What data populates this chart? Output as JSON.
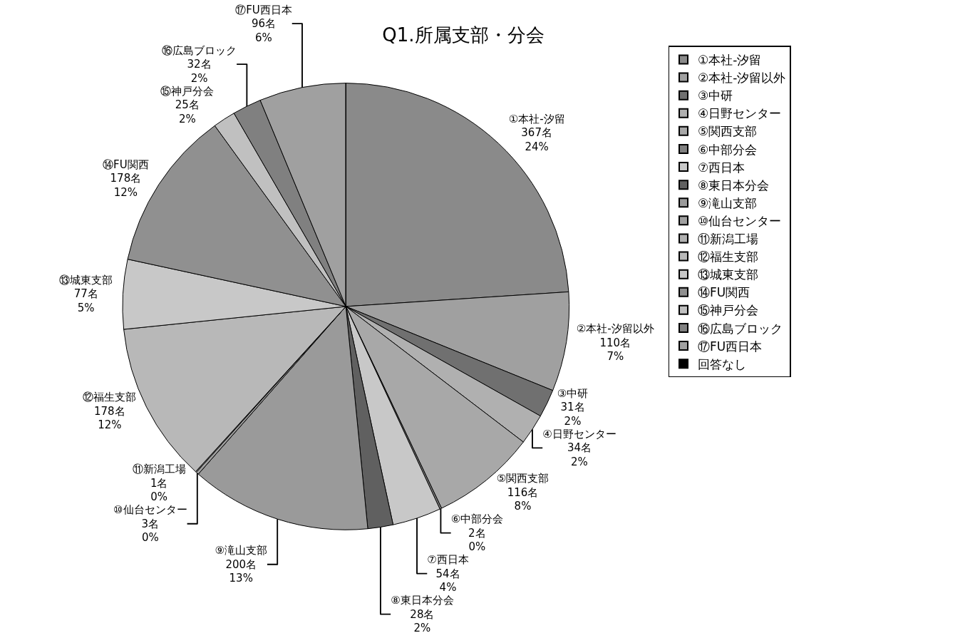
{
  "chart_data": {
    "type": "pie",
    "title": "Q1.所属支部・分会",
    "categories": [
      "①本社-汐留",
      "②本社-汐留以外",
      "③中研",
      "④日野センター",
      "⑤関西支部",
      "⑥中部分会",
      "⑦西日本",
      "⑧東日本分会",
      "⑨滝山支部",
      "⑩仙台センター",
      "⑪新潟工場",
      "⑫福生支部",
      "⑬城東支部",
      "⑭FU関西",
      "⑮神戸分会",
      "⑯広島ブロック",
      "⑰FU西日本",
      "回答なし"
    ],
    "values": [
      367,
      110,
      31,
      34,
      116,
      2,
      54,
      28,
      200,
      3,
      1,
      178,
      77,
      178,
      25,
      32,
      96,
      0
    ],
    "value_labels": [
      "367名\n24%",
      "110名\n7%",
      "31名\n2%",
      "34名\n2%",
      "116名\n8%",
      "2名\n0%",
      "54名\n4%",
      "28名\n2%",
      "200名\n13%",
      "3名\n0%",
      "1名\n0%",
      "178名\n12%",
      "77名\n5%",
      "178名\n12%",
      "25名\n2%",
      "32名\n2%",
      "96名\n6%",
      null
    ],
    "colors": [
      "#8a8a8a",
      "#a0a0a0",
      "#707070",
      "#b0b0b0",
      "#a8a8a8",
      "#808080",
      "#c8c8c8",
      "#606060",
      "#9a9a9a",
      "#a0a0a0",
      "#b0b0b0",
      "#b8b8b8",
      "#c8c8c8",
      "#909090",
      "#c0c0c0",
      "#808080",
      "#a0a0a0",
      "#000000"
    ],
    "legend": "right"
  }
}
